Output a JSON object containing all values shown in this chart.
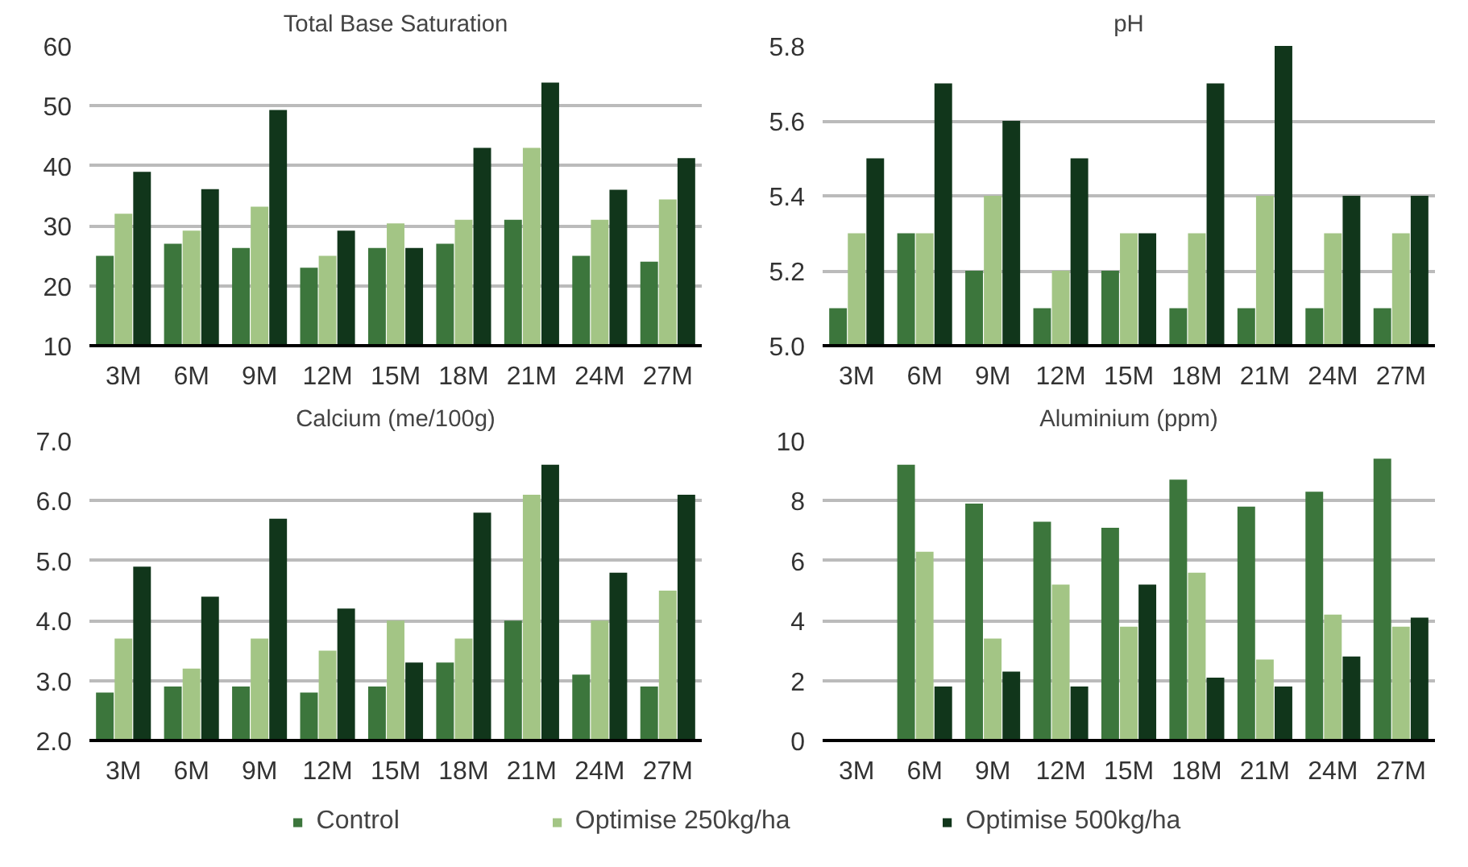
{
  "chart_data": [
    {
      "type": "bar",
      "title": "Total Base Saturation",
      "categories": [
        "3M",
        "6M",
        "9M",
        "12M",
        "15M",
        "18M",
        "21M",
        "24M",
        "27M"
      ],
      "series": [
        {
          "name": "Control",
          "color": "#3c763c",
          "values": [
            25,
            27,
            26.3,
            23,
            26.3,
            27,
            31,
            25,
            24
          ]
        },
        {
          "name": "Optimise 250kg/ha",
          "color": "#a3c585",
          "values": [
            32,
            29.2,
            33.2,
            25,
            30.4,
            31,
            43,
            31,
            34.4
          ]
        },
        {
          "name": "Optimise 500kg/ha",
          "color": "#11361b",
          "values": [
            39,
            36.1,
            49.3,
            29.2,
            26.3,
            43,
            53.9,
            36,
            41.3
          ]
        }
      ],
      "ylim": [
        10,
        60
      ],
      "yticks": [
        10,
        20,
        30,
        40,
        50,
        60
      ],
      "grid": "y",
      "legend": "bottom"
    },
    {
      "type": "bar",
      "title": "pH",
      "categories": [
        "3M",
        "6M",
        "9M",
        "12M",
        "15M",
        "18M",
        "21M",
        "24M",
        "27M"
      ],
      "series": [
        {
          "color": "#3c763c",
          "values": [
            5.1,
            5.3,
            5.2,
            5.1,
            5.2,
            5.1,
            5.1,
            5.1,
            5.1
          ]
        },
        {
          "color": "#a3c585",
          "values": [
            5.3,
            5.3,
            5.4,
            5.2,
            5.3,
            5.3,
            5.4,
            5.3,
            5.3
          ]
        },
        {
          "color": "#11361b",
          "values": [
            5.5,
            5.7,
            5.6,
            5.5,
            5.3,
            5.7,
            5.8,
            5.4,
            5.4
          ]
        }
      ],
      "ylim": [
        5.0,
        5.8
      ],
      "yticks": [
        {
          "value": 5.0,
          "label": "5.0"
        },
        5.2,
        5.4,
        5.6,
        5.8
      ],
      "grid": "y"
    },
    {
      "type": "bar",
      "title": "Calcium (me/100g)",
      "categories": [
        "3M",
        "6M",
        "9M",
        "12M",
        "15M",
        "18M",
        "21M",
        "24M",
        "27M"
      ],
      "series": [
        {
          "color": "#3c763c",
          "values": [
            2.8,
            2.9,
            2.9,
            2.8,
            2.9,
            3.3,
            4.0,
            3.1,
            2.9
          ]
        },
        {
          "color": "#a3c585",
          "values": [
            3.7,
            3.2,
            3.7,
            3.5,
            4.0,
            3.7,
            6.1,
            4.0,
            4.5
          ]
        },
        {
          "color": "#11361b",
          "values": [
            4.9,
            4.4,
            5.7,
            4.2,
            3.3,
            5.8,
            6.6,
            4.8,
            6.1
          ]
        }
      ],
      "ylim": [
        2.0,
        7.0
      ],
      "yticks": [
        {
          "value": 2.0,
          "label": "2.0"
        },
        {
          "value": 3.0,
          "label": "3.0"
        },
        {
          "value": 4.0,
          "label": "4.0"
        },
        {
          "value": 5.0,
          "label": "5.0"
        },
        {
          "value": 6.0,
          "label": "6.0"
        },
        {
          "value": 7.0,
          "label": "7.0"
        }
      ],
      "grid": "y"
    },
    {
      "type": "bar",
      "title": "Aluminium (ppm)",
      "categories": [
        "3M",
        "6M",
        "9M",
        "12M",
        "15M",
        "18M",
        "21M",
        "24M",
        "27M"
      ],
      "series": [
        {
          "color": "#3c763c",
          "values": [
            0,
            9.2,
            7.9,
            7.3,
            7.1,
            8.7,
            7.8,
            8.3,
            9.4
          ]
        },
        {
          "color": "#a3c585",
          "values": [
            0,
            6.3,
            3.4,
            5.2,
            3.8,
            5.6,
            2.7,
            4.2,
            3.8
          ]
        },
        {
          "color": "#11361b",
          "values": [
            0,
            1.8,
            2.3,
            1.8,
            5.2,
            2.1,
            1.8,
            2.8,
            4.1
          ]
        }
      ],
      "ylim": [
        0,
        10
      ],
      "yticks": [
        0,
        2,
        4,
        6,
        8,
        10
      ],
      "grid": "y"
    }
  ]
}
